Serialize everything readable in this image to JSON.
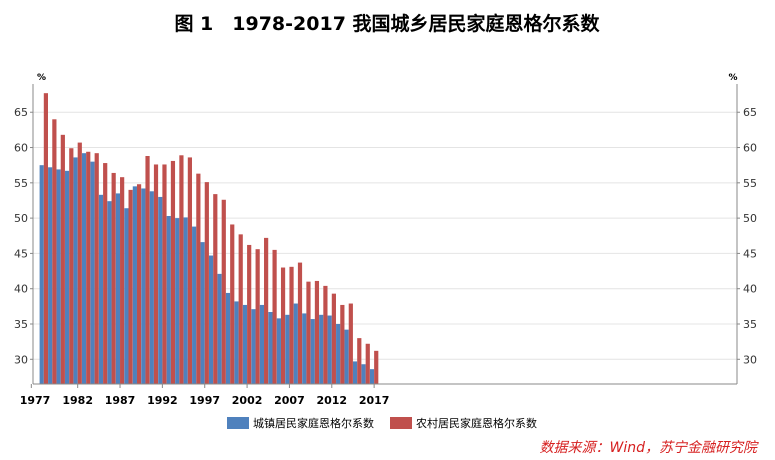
{
  "chart_data": {
    "type": "bar",
    "title": "图 1　1978-2017 我国城乡居民家庭恩格尔系数",
    "unit_left": "%",
    "unit_right": "%",
    "ylim": [
      26.5,
      69
    ],
    "yticks": [
      30,
      35,
      40,
      45,
      50,
      55,
      60,
      65
    ],
    "xticks": [
      1977,
      1982,
      1987,
      1992,
      1997,
      2002,
      2007,
      2012,
      2017
    ],
    "grid": true,
    "legend_position": "bottom-center",
    "categories": [
      1978,
      1979,
      1980,
      1981,
      1982,
      1983,
      1984,
      1985,
      1986,
      1987,
      1988,
      1989,
      1990,
      1991,
      1992,
      1993,
      1994,
      1995,
      1996,
      1997,
      1998,
      1999,
      2000,
      2001,
      2002,
      2003,
      2004,
      2005,
      2006,
      2007,
      2008,
      2009,
      2010,
      2011,
      2012,
      2013,
      2014,
      2015,
      2016,
      2017
    ],
    "series": [
      {
        "name": "城镇居民家庭恩格尔系数",
        "color": "#4f81bd",
        "values": [
          57.5,
          57.2,
          56.9,
          56.7,
          58.6,
          59.2,
          58.0,
          53.3,
          52.4,
          53.5,
          51.4,
          54.5,
          54.2,
          53.8,
          53.0,
          50.3,
          50.0,
          50.1,
          48.8,
          46.6,
          44.7,
          42.1,
          39.4,
          38.2,
          37.7,
          37.1,
          37.7,
          36.7,
          35.8,
          36.3,
          37.9,
          36.5,
          35.7,
          36.3,
          36.2,
          35.0,
          34.2,
          29.7,
          29.3,
          28.6
        ]
      },
      {
        "name": "农村居民家庭恩格尔系数",
        "color": "#c0504d",
        "values": [
          67.7,
          64.0,
          61.8,
          59.9,
          60.7,
          59.4,
          59.2,
          57.8,
          56.4,
          55.8,
          54.0,
          54.8,
          58.8,
          57.6,
          57.6,
          58.1,
          58.9,
          58.6,
          56.3,
          55.1,
          53.4,
          52.6,
          49.1,
          47.7,
          46.2,
          45.6,
          47.2,
          45.5,
          43.0,
          43.1,
          43.7,
          41.0,
          41.1,
          40.4,
          39.3,
          37.7,
          37.9,
          33.0,
          32.2,
          31.2
        ]
      }
    ],
    "source": "数据来源：Wind，苏宁金融研究院"
  }
}
